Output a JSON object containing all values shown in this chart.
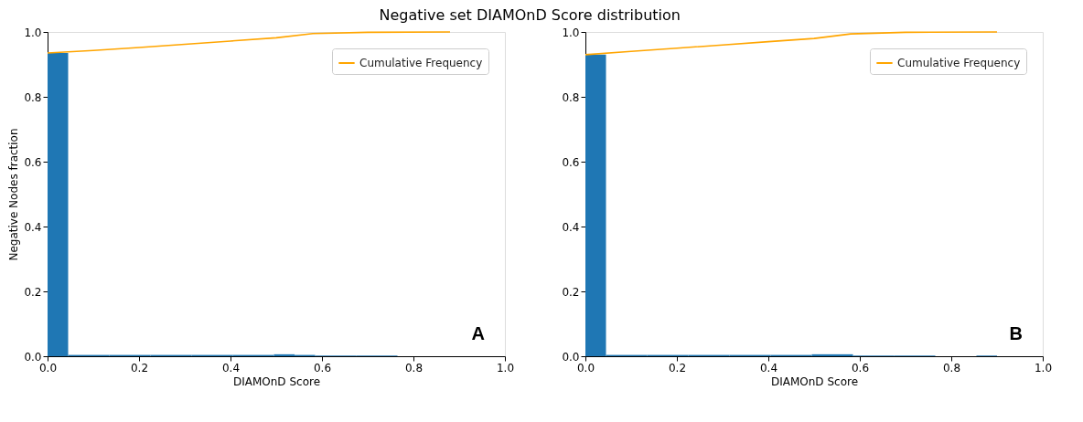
{
  "chart_data": [
    {
      "type": "histogram",
      "title": "Negative set DIAMOnD Score distribution",
      "xlabel": "DIAMOnD Score",
      "ylabel": "Negative Nodes fraction",
      "bins": [
        0,
        0.045,
        0.09,
        0.135,
        0.18,
        0.225,
        0.27,
        0.315,
        0.36,
        0.405,
        0.45,
        0.495,
        0.54,
        0.585,
        0.63,
        0.675,
        0.72,
        0.765
      ],
      "series": [
        {
          "color": "#1f77b4",
          "values": [
            0.935,
            0.004,
            0.004,
            0.004,
            0.004,
            0.004,
            0.004,
            0.004,
            0.004,
            0.004,
            0.004,
            0.006,
            0.004,
            0.002,
            0.002,
            0.002,
            0.002
          ]
        },
        {
          "type": "line",
          "name": "Cumulative Frequency",
          "color": "#ffa500",
          "x": [
            0,
            0.1,
            0.2,
            0.3,
            0.4,
            0.5,
            0.58,
            0.7,
            0.88
          ],
          "values": [
            0.935,
            0.943,
            0.952,
            0.962,
            0.972,
            0.982,
            0.995,
            0.999,
            1.0
          ]
        }
      ],
      "xlim": [
        0,
        1
      ],
      "ylim": [
        0,
        1
      ],
      "xticks": [
        {
          "value": 0,
          "label": "0.0"
        },
        {
          "value": 0.2,
          "label": "0.2"
        },
        {
          "value": 0.4,
          "label": "0.4"
        },
        {
          "value": 0.6,
          "label": "0.6"
        },
        {
          "value": 0.8,
          "label": "0.8"
        },
        {
          "value": 1,
          "label": "1.0"
        }
      ],
      "yticks": [
        {
          "value": 0,
          "label": "0.0"
        },
        {
          "value": 0.2,
          "label": "0.2"
        },
        {
          "value": 0.4,
          "label": "0.4"
        },
        {
          "value": 0.6,
          "label": "0.6"
        },
        {
          "value": 0.8,
          "label": "0.8"
        },
        {
          "value": 1,
          "label": "1.0"
        }
      ],
      "annotations": [
        "A"
      ],
      "legend": "top right",
      "grid": false
    },
    {
      "type": "histogram",
      "xlabel": "DIAMOnD Score",
      "bins": [
        0,
        0.045,
        0.09,
        0.135,
        0.18,
        0.225,
        0.27,
        0.315,
        0.36,
        0.405,
        0.45,
        0.495,
        0.54,
        0.585,
        0.63,
        0.675,
        0.72,
        0.765,
        0.81,
        0.855,
        0.9
      ],
      "series": [
        {
          "color": "#1f77b4",
          "values": [
            0.93,
            0.004,
            0.004,
            0.004,
            0.004,
            0.004,
            0.004,
            0.004,
            0.004,
            0.004,
            0.004,
            0.006,
            0.006,
            0.002,
            0.002,
            0.002,
            0.002,
            0,
            0,
            0.002
          ]
        },
        {
          "type": "line",
          "name": "Cumulative Frequency",
          "color": "#ffa500",
          "x": [
            0,
            0.1,
            0.2,
            0.3,
            0.4,
            0.5,
            0.58,
            0.7,
            0.9
          ],
          "values": [
            0.93,
            0.94,
            0.95,
            0.96,
            0.97,
            0.98,
            0.994,
            0.999,
            1.0
          ]
        }
      ],
      "xlim": [
        0,
        1
      ],
      "ylim": [
        0,
        1
      ],
      "xticks": [
        {
          "value": 0,
          "label": "0.0"
        },
        {
          "value": 0.2,
          "label": "0.2"
        },
        {
          "value": 0.4,
          "label": "0.4"
        },
        {
          "value": 0.6,
          "label": "0.6"
        },
        {
          "value": 0.8,
          "label": "0.8"
        },
        {
          "value": 1,
          "label": "1.0"
        }
      ],
      "yticks": [
        {
          "value": 0,
          "label": "0.0"
        },
        {
          "value": 0.2,
          "label": "0.2"
        },
        {
          "value": 0.4,
          "label": "0.4"
        },
        {
          "value": 0.6,
          "label": "0.6"
        },
        {
          "value": 0.8,
          "label": "0.8"
        },
        {
          "value": 1,
          "label": "1.0"
        }
      ],
      "annotations": [
        "B"
      ],
      "legend": "top right",
      "grid": false
    }
  ]
}
